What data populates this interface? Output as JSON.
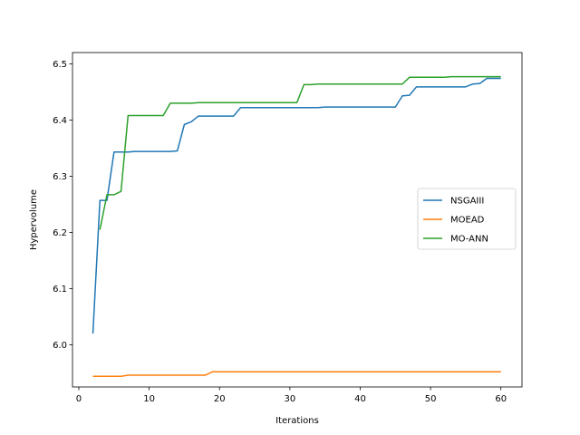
{
  "chart_data": {
    "type": "line",
    "title": "",
    "xlabel": "Iterations",
    "ylabel": "Hypervolume",
    "xlim": [
      -0.9,
      63
    ],
    "ylim": [
      5.925,
      6.52
    ],
    "xticks": [
      0,
      10,
      20,
      30,
      40,
      50,
      60
    ],
    "yticks": [
      6.0,
      6.1,
      6.2,
      6.3,
      6.4,
      6.5
    ],
    "xtick_labels": [
      "0",
      "10",
      "20",
      "30",
      "40",
      "50",
      "60"
    ],
    "ytick_labels": [
      "6.0",
      "6.1",
      "6.2",
      "6.3",
      "6.4",
      "6.5"
    ],
    "grid": false,
    "legend_position": "center-right",
    "series": [
      {
        "name": "NSGAIII",
        "color": "#1f77b4",
        "x": [
          2,
          3,
          4,
          5,
          6,
          7,
          8,
          9,
          10,
          11,
          12,
          13,
          14,
          15,
          16,
          17,
          18,
          19,
          20,
          21,
          22,
          23,
          24,
          25,
          26,
          27,
          28,
          29,
          30,
          31,
          32,
          33,
          34,
          35,
          36,
          37,
          38,
          39,
          40,
          41,
          42,
          43,
          44,
          45,
          46,
          47,
          48,
          49,
          50,
          51,
          52,
          53,
          54,
          55,
          56,
          57,
          58,
          59,
          60
        ],
        "values": [
          6.02,
          6.257,
          6.257,
          6.343,
          6.343,
          6.343,
          6.344,
          6.344,
          6.344,
          6.344,
          6.344,
          6.344,
          6.345,
          6.392,
          6.397,
          6.407,
          6.407,
          6.407,
          6.407,
          6.407,
          6.407,
          6.422,
          6.422,
          6.422,
          6.422,
          6.422,
          6.422,
          6.422,
          6.422,
          6.422,
          6.422,
          6.422,
          6.422,
          6.423,
          6.423,
          6.423,
          6.423,
          6.423,
          6.423,
          6.423,
          6.423,
          6.423,
          6.423,
          6.423,
          6.443,
          6.444,
          6.459,
          6.459,
          6.459,
          6.459,
          6.459,
          6.459,
          6.459,
          6.459,
          6.464,
          6.465,
          6.474,
          6.474,
          6.474
        ]
      },
      {
        "name": "MOEAD",
        "color": "#ff7f0e",
        "x": [
          2,
          3,
          4,
          5,
          6,
          7,
          8,
          9,
          10,
          11,
          12,
          13,
          14,
          15,
          16,
          17,
          18,
          19,
          20,
          21,
          22,
          23,
          24,
          25,
          26,
          27,
          28,
          29,
          30,
          31,
          32,
          33,
          34,
          35,
          36,
          37,
          38,
          39,
          40,
          41,
          42,
          43,
          44,
          45,
          46,
          47,
          48,
          49,
          50,
          51,
          52,
          53,
          54,
          55,
          56,
          57,
          58,
          59,
          60
        ],
        "values": [
          5.944,
          5.944,
          5.944,
          5.944,
          5.944,
          5.946,
          5.946,
          5.946,
          5.946,
          5.946,
          5.946,
          5.946,
          5.946,
          5.946,
          5.946,
          5.946,
          5.946,
          5.952,
          5.952,
          5.952,
          5.952,
          5.952,
          5.952,
          5.952,
          5.952,
          5.952,
          5.952,
          5.952,
          5.952,
          5.952,
          5.952,
          5.952,
          5.952,
          5.952,
          5.952,
          5.952,
          5.952,
          5.952,
          5.952,
          5.952,
          5.952,
          5.952,
          5.952,
          5.952,
          5.952,
          5.952,
          5.952,
          5.952,
          5.952,
          5.952,
          5.952,
          5.952,
          5.952,
          5.952,
          5.952,
          5.952,
          5.952,
          5.952,
          5.952
        ]
      },
      {
        "name": "MO-ANN",
        "color": "#2ca02c",
        "x": [
          3,
          4,
          5,
          6,
          7,
          8,
          9,
          10,
          11,
          12,
          13,
          14,
          15,
          16,
          17,
          18,
          19,
          20,
          21,
          22,
          23,
          24,
          25,
          26,
          27,
          28,
          29,
          30,
          31,
          32,
          33,
          34,
          35,
          36,
          37,
          38,
          39,
          40,
          41,
          42,
          43,
          44,
          45,
          46,
          47,
          48,
          49,
          50,
          51,
          52,
          53,
          54,
          55,
          56,
          57,
          58,
          59,
          60
        ],
        "values": [
          6.205,
          6.267,
          6.267,
          6.273,
          6.408,
          6.408,
          6.408,
          6.408,
          6.408,
          6.408,
          6.43,
          6.43,
          6.43,
          6.43,
          6.431,
          6.431,
          6.431,
          6.431,
          6.431,
          6.431,
          6.431,
          6.431,
          6.431,
          6.431,
          6.431,
          6.431,
          6.431,
          6.431,
          6.431,
          6.463,
          6.463,
          6.464,
          6.464,
          6.464,
          6.464,
          6.464,
          6.464,
          6.464,
          6.464,
          6.464,
          6.464,
          6.464,
          6.464,
          6.464,
          6.476,
          6.476,
          6.476,
          6.476,
          6.476,
          6.476,
          6.477,
          6.477,
          6.477,
          6.477,
          6.477,
          6.477,
          6.477,
          6.477
        ]
      }
    ]
  }
}
